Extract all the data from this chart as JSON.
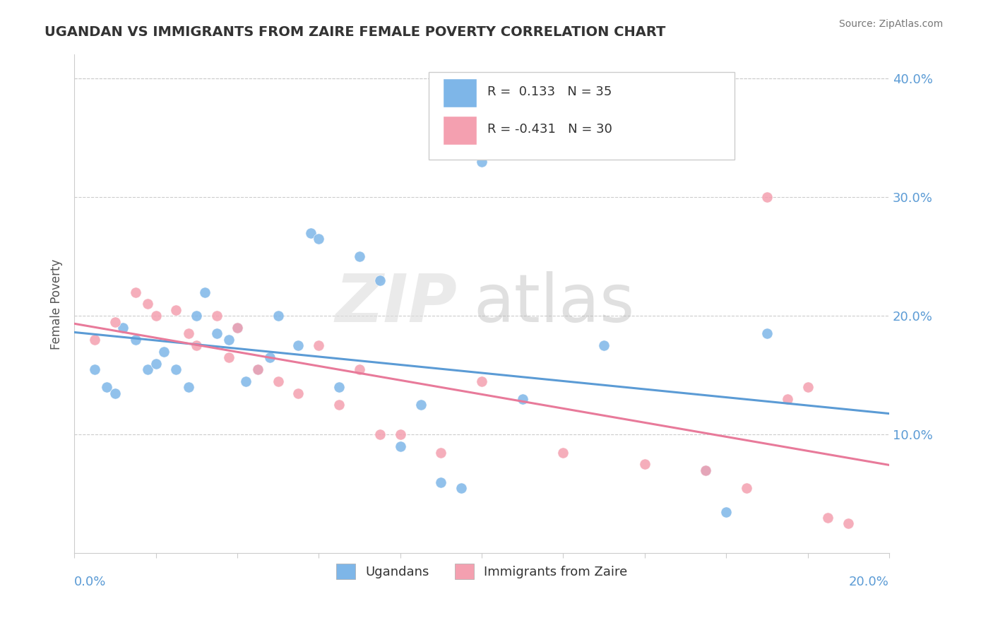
{
  "title": "UGANDAN VS IMMIGRANTS FROM ZAIRE FEMALE POVERTY CORRELATION CHART",
  "source": "Source: ZipAtlas.com",
  "ylabel": "Female Poverty",
  "legend_label1": "Ugandans",
  "legend_label2": "Immigrants from Zaire",
  "r1": 0.133,
  "n1": 35,
  "r2": -0.431,
  "n2": 30,
  "color_blue": "#7EB6E8",
  "color_pink": "#F4A0B0",
  "line_blue": "#5B9BD5",
  "line_pink": "#E87A9A",
  "xlim": [
    0.0,
    0.2
  ],
  "ylim": [
    0.0,
    0.42
  ],
  "yticks": [
    0.1,
    0.2,
    0.3,
    0.4
  ],
  "ytick_labels": [
    "10.0%",
    "20.0%",
    "30.0%",
    "40.0%"
  ],
  "ugandan_x": [
    0.005,
    0.008,
    0.01,
    0.012,
    0.015,
    0.018,
    0.02,
    0.022,
    0.025,
    0.028,
    0.03,
    0.032,
    0.035,
    0.038,
    0.04,
    0.042,
    0.045,
    0.048,
    0.05,
    0.055,
    0.058,
    0.06,
    0.065,
    0.07,
    0.075,
    0.08,
    0.085,
    0.09,
    0.095,
    0.1,
    0.11,
    0.13,
    0.155,
    0.16,
    0.17
  ],
  "ugandan_y": [
    0.155,
    0.14,
    0.135,
    0.19,
    0.18,
    0.155,
    0.16,
    0.17,
    0.155,
    0.14,
    0.2,
    0.22,
    0.185,
    0.18,
    0.19,
    0.145,
    0.155,
    0.165,
    0.2,
    0.175,
    0.27,
    0.265,
    0.14,
    0.25,
    0.23,
    0.09,
    0.125,
    0.06,
    0.055,
    0.33,
    0.13,
    0.175,
    0.07,
    0.035,
    0.185
  ],
  "zaire_x": [
    0.005,
    0.01,
    0.015,
    0.018,
    0.02,
    0.025,
    0.028,
    0.03,
    0.035,
    0.038,
    0.04,
    0.045,
    0.05,
    0.055,
    0.06,
    0.065,
    0.07,
    0.075,
    0.08,
    0.09,
    0.1,
    0.12,
    0.14,
    0.155,
    0.165,
    0.17,
    0.175,
    0.18,
    0.185,
    0.19
  ],
  "zaire_y": [
    0.18,
    0.195,
    0.22,
    0.21,
    0.2,
    0.205,
    0.185,
    0.175,
    0.2,
    0.165,
    0.19,
    0.155,
    0.145,
    0.135,
    0.175,
    0.125,
    0.155,
    0.1,
    0.1,
    0.085,
    0.145,
    0.085,
    0.075,
    0.07,
    0.055,
    0.3,
    0.13,
    0.14,
    0.03,
    0.025
  ]
}
